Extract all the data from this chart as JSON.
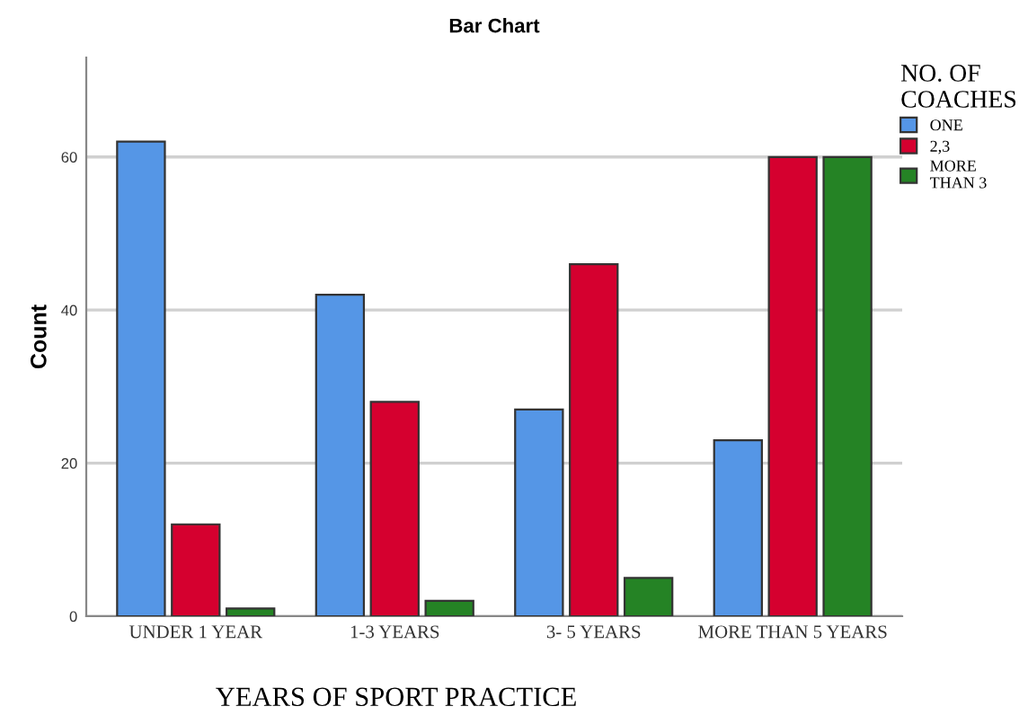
{
  "chart_data": {
    "type": "bar",
    "title": "Bar Chart",
    "xlabel": "YEARS OF SPORT PRACTICE",
    "ylabel": "Count",
    "legend_title": "NO. OF\nCOACHES",
    "categories": [
      "UNDER 1 YEAR",
      "1-3 YEARS",
      "3- 5 YEARS",
      "MORE THAN 5 YEARS"
    ],
    "series": [
      {
        "name": "ONE",
        "color": "#5596e6",
        "values": [
          62,
          42,
          27,
          23
        ]
      },
      {
        "name": "2,3",
        "color": "#d5002f",
        "values": [
          12,
          28,
          46,
          60
        ]
      },
      {
        "name": "MORE\nTHAN 3",
        "color": "#258325",
        "values": [
          1,
          2,
          5,
          60
        ]
      }
    ],
    "ylim": [
      0,
      73
    ],
    "yticks": [
      0,
      20,
      40,
      60
    ],
    "grid": "y",
    "legend": "top right"
  }
}
